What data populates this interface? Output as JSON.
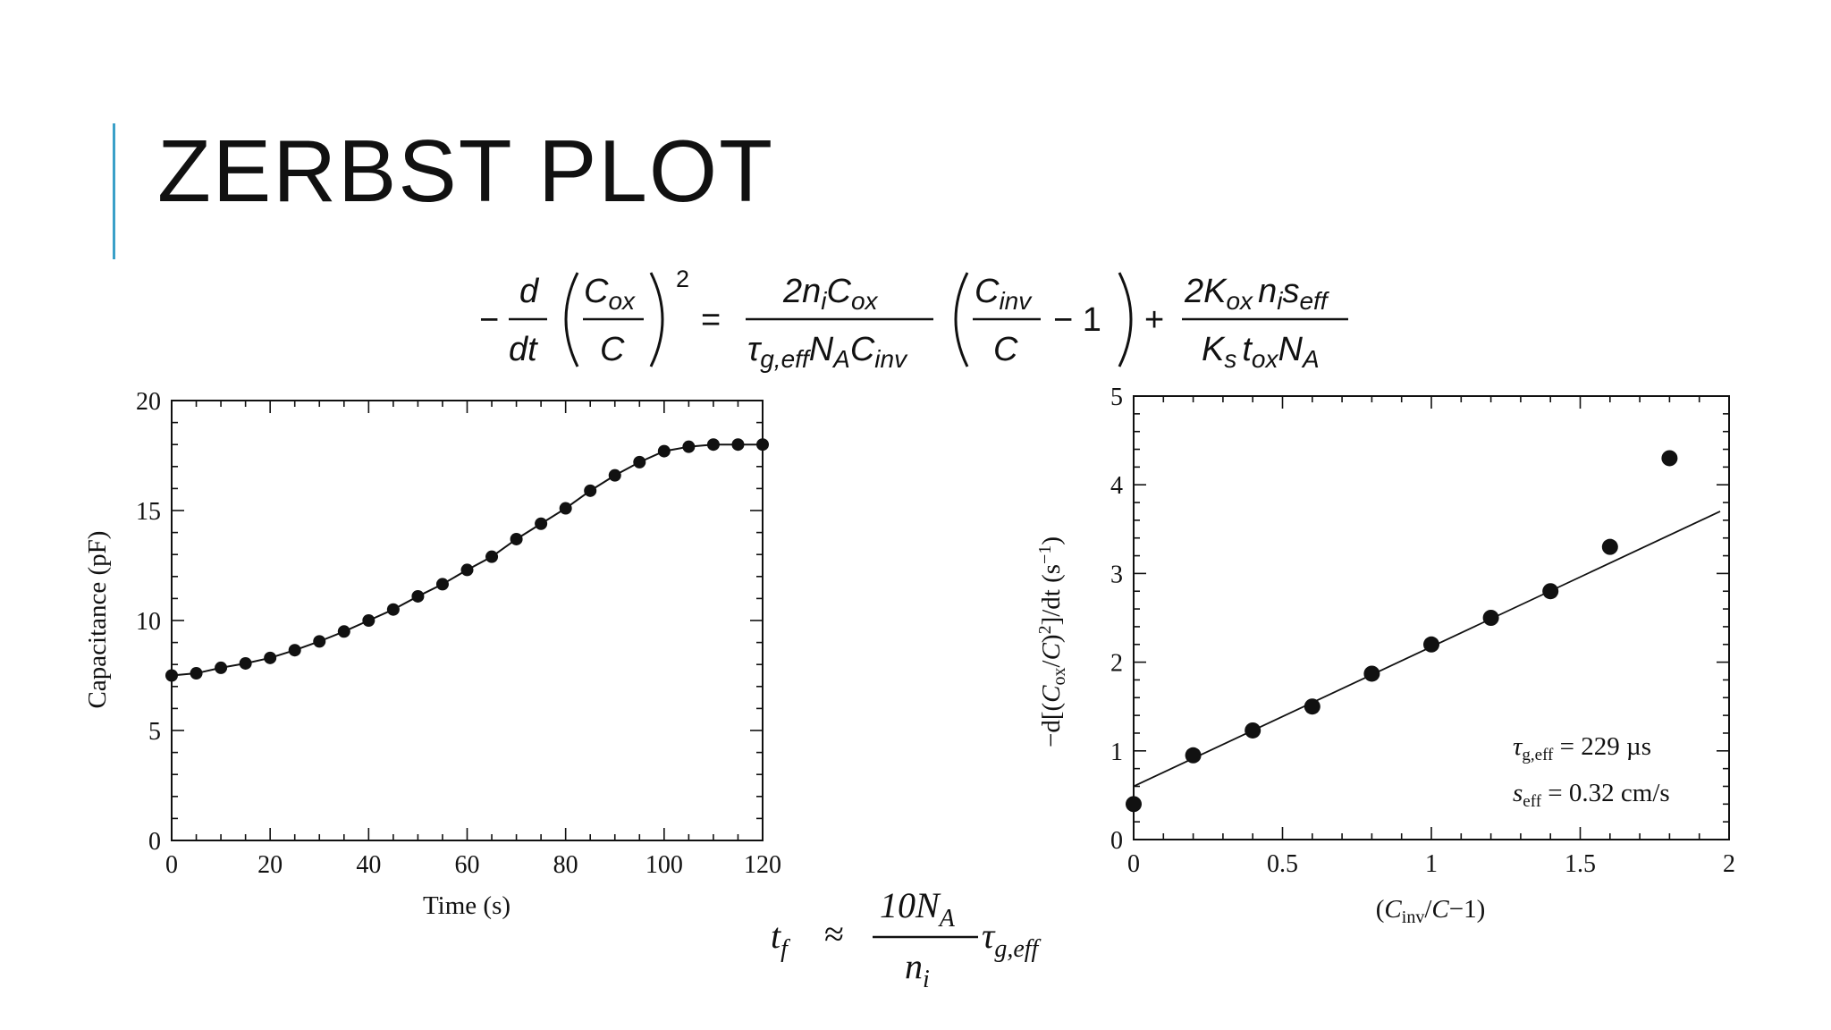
{
  "slide": {
    "title": "ZERBST PLOT",
    "accent_color": "#3aa0c8"
  },
  "equations": {
    "zerbst": {
      "lhs_prefix": "−",
      "d": "d",
      "dt": "dt",
      "c_ox": "C",
      "c_ox_sub": "ox",
      "c": "C",
      "power": "2",
      "equals": "=",
      "t1_num": "2n",
      "t1_num_i": "i",
      "t1_num_c": "C",
      "t1_num_c_sub": "ox",
      "t1_den_tau": "τ",
      "t1_den_tau_sub": "g,eff",
      "t1_den_n": "N",
      "t1_den_n_sub": "A",
      "t1_den_c": "C",
      "t1_den_c_sub": "inv",
      "t2_num": "C",
      "t2_num_sub": "inv",
      "t2_den": "C",
      "minus_one": "− 1",
      "plus": "+",
      "t3_num": "2K",
      "t3_num_sub": "ox",
      "t3_num_n": "n",
      "t3_num_n_sub": "i",
      "t3_num_s": "s",
      "t3_num_s_sub": "eff",
      "t3_den_k": "K",
      "t3_den_k_sub": "s",
      "t3_den_t": "t",
      "t3_den_t_sub": "ox",
      "t3_den_n": "N",
      "t3_den_n_sub": "A"
    },
    "tf": {
      "t": "t",
      "t_sub": "f",
      "approx": "≈",
      "num": "10N",
      "num_sub": "A",
      "den": "n",
      "den_sub": "i",
      "tau": "τ",
      "tau_sub": "g,eff"
    }
  },
  "chart_data": [
    {
      "type": "line",
      "title": "",
      "xlabel": "Time (s)",
      "ylabel": "Capacitance (pF)",
      "xlim": [
        0,
        120
      ],
      "ylim": [
        0,
        20
      ],
      "x_ticks": [
        "0",
        "20",
        "40",
        "60",
        "80",
        "100",
        "120"
      ],
      "y_ticks": [
        "0",
        "5",
        "10",
        "15",
        "20"
      ],
      "x": [
        0,
        5,
        10,
        15,
        20,
        25,
        30,
        35,
        40,
        45,
        50,
        55,
        60,
        65,
        70,
        75,
        80,
        85,
        90,
        95,
        100,
        105,
        110,
        115,
        120
      ],
      "series": [
        {
          "values": [
            7.5,
            7.6,
            7.85,
            8.05,
            8.3,
            8.65,
            9.05,
            9.5,
            10.0,
            10.5,
            11.1,
            11.65,
            12.3,
            12.9,
            13.7,
            14.4,
            15.1,
            15.9,
            16.6,
            17.2,
            17.7,
            17.9,
            18.0,
            18.0,
            18.0
          ]
        }
      ],
      "grid": false
    },
    {
      "type": "scatter",
      "title": "",
      "xlabel": "(C_inv/C−1)",
      "ylabel": "−d[(C_ox/C)^2]/dt (s^−1)",
      "xlim": [
        0,
        2
      ],
      "ylim": [
        0,
        5
      ],
      "x_ticks": [
        "0",
        "0.5",
        "1",
        "1.5",
        "2"
      ],
      "y_ticks": [
        "0",
        "1",
        "2",
        "3",
        "4",
        "5"
      ],
      "x": [
        0,
        0.2,
        0.4,
        0.6,
        0.8,
        1.0,
        1.2,
        1.4,
        1.6,
        1.8
      ],
      "series": [
        {
          "values": [
            0.4,
            0.95,
            1.23,
            1.5,
            1.87,
            2.2,
            2.5,
            2.8,
            3.3,
            4.3
          ]
        }
      ],
      "fit_line": {
        "x": [
          0,
          1.97
        ],
        "y": [
          0.6,
          3.7
        ]
      },
      "annotations": {
        "tau_sym": "τ",
        "tau_sub": "g,eff",
        "tau_val": " = 229 µs",
        "s_sym": "s",
        "s_sub": "eff",
        "s_val": " = 0.32 cm/s"
      },
      "grid": false
    }
  ]
}
